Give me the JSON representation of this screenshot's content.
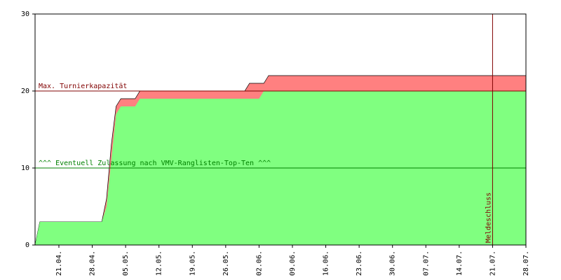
{
  "chart_data": {
    "type": "area",
    "x": [
      "16.04.",
      "17.04.",
      "30.04.",
      "01.05.",
      "02.05.",
      "03.05.",
      "04.05.",
      "07.05.",
      "08.05.",
      "30.05.",
      "31.05.",
      "02.06.",
      "03.06.",
      "04.06.",
      "28.07."
    ],
    "series": [
      {
        "color": "#ff8080",
        "values": [
          0,
          3,
          3,
          6,
          13,
          18,
          19,
          19,
          20,
          20,
          21,
          21,
          21,
          22,
          22
        ]
      },
      {
        "color": "#80ff80",
        "values": [
          0,
          3,
          3,
          5,
          11,
          17,
          18,
          18,
          19,
          19,
          19,
          19,
          20,
          20,
          20
        ]
      }
    ],
    "xlim": [
      "16.04.",
      "28.07."
    ],
    "xticks": [
      "21.04.",
      "28.04.",
      "05.05.",
      "12.05.",
      "19.05.",
      "26.05.",
      "02.06.",
      "09.06.",
      "16.06.",
      "23.06.",
      "30.06.",
      "07.07.",
      "14.07.",
      "21.07.",
      "28.07."
    ],
    "ylim": [
      0,
      30
    ],
    "yticks": [
      0,
      10,
      20,
      30
    ],
    "reference_lines": [
      {
        "value": 20,
        "label": "Max. Turnierkapazität",
        "color": "#800000"
      },
      {
        "value": 10,
        "label": "^^^ Eventuell Zulassung nach VMV-Ranglisten-Top-Ten ^^^",
        "color": "#008000"
      }
    ],
    "vertical_line": {
      "x": "21.07.",
      "label": "Meldeschluss",
      "color": "#800000"
    }
  }
}
